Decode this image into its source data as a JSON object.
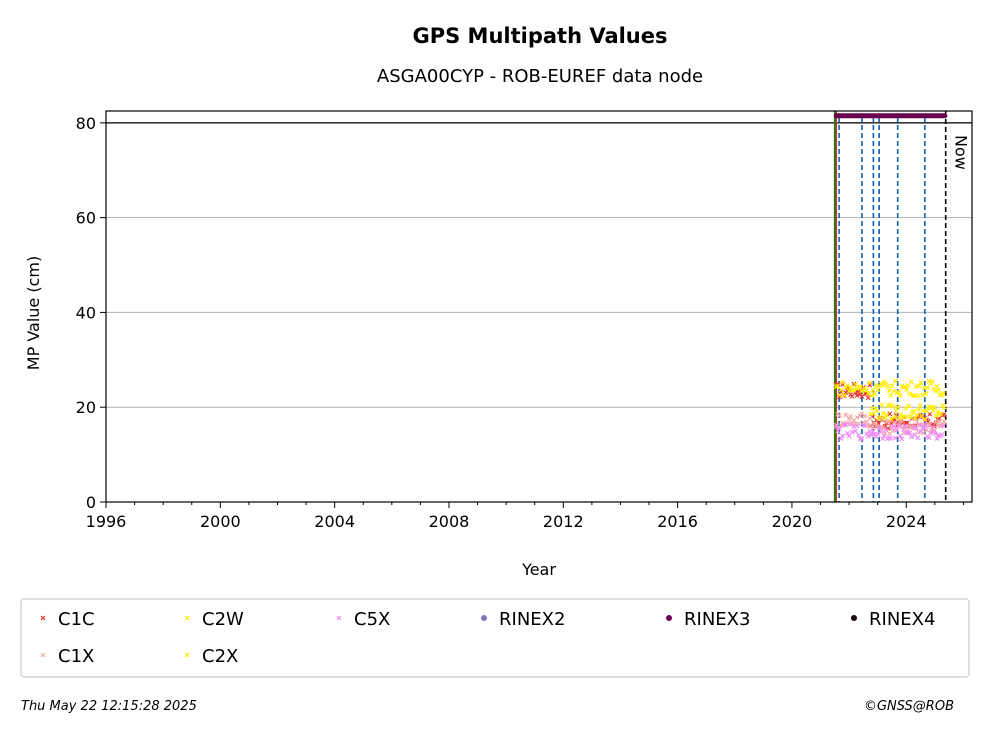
{
  "chart_data": {
    "type": "scatter",
    "title": "GPS Multipath Values",
    "subtitle": "ASGA00CYP - ROB-EUREF data node",
    "xlabel": "Year",
    "ylabel": "MP Value (cm)",
    "xlim": [
      1996,
      2026.3
    ],
    "ylim": [
      0,
      82.5
    ],
    "xticks": [
      1996,
      2000,
      2004,
      2008,
      2012,
      2016,
      2020,
      2024
    ],
    "yticks": [
      0,
      20,
      40,
      60,
      80
    ],
    "grid": "horizontal",
    "legend_position": "bottom",
    "series": [
      {
        "name": "C1C",
        "color": "#e8302a",
        "marker": "x",
        "segments": [
          {
            "x": [
              2021.55,
              2022.75
            ],
            "y": 23.5
          },
          {
            "x": [
              2022.75,
              2025.35
            ],
            "y": 17
          }
        ]
      },
      {
        "name": "C1X",
        "color": "#f5a7a7",
        "marker": "x",
        "segments": [
          {
            "x": [
              2021.55,
              2022.75
            ],
            "y": 17.5
          },
          {
            "x": [
              2022.75,
              2025.35
            ],
            "y": 16
          }
        ]
      },
      {
        "name": "C2W",
        "color": "#ffee00",
        "marker": "x",
        "segments": [
          {
            "x": [
              2022.75,
              2025.35
            ],
            "y": 19
          }
        ]
      },
      {
        "name": "C2X",
        "color": "#ffee00",
        "marker": "x",
        "segments": [
          {
            "x": [
              2021.55,
              2025.35
            ],
            "y": 24
          }
        ]
      },
      {
        "name": "C5X",
        "color": "#f08cf5",
        "marker": "x",
        "segments": [
          {
            "x": [
              2021.55,
              2025.35
            ],
            "y": 14.8
          }
        ]
      },
      {
        "name": "RINEX2",
        "color": "#8077bb",
        "marker": "o",
        "segments": []
      },
      {
        "name": "RINEX3",
        "color": "#6a0050",
        "marker": "o",
        "segments": [
          {
            "x": [
              2021.55,
              2025.35
            ],
            "y": 81.5
          }
        ]
      },
      {
        "name": "RINEX4",
        "color": "#1a0010",
        "marker": "o",
        "segments": []
      }
    ],
    "reference_lines": {
      "horizontal": [
        {
          "y": 80,
          "color": "#000000"
        }
      ],
      "start_green": 2021.5,
      "start_red": 2021.55,
      "events_blue": [
        2021.65,
        2022.45,
        2022.85,
        2023.05,
        2023.7,
        2024.65
      ],
      "now": {
        "x": 2025.38,
        "label": "Now"
      }
    },
    "legend": {
      "entries": [
        {
          "label": "C1C",
          "series": "C1C"
        },
        {
          "label": "C2W",
          "series": "C2W"
        },
        {
          "label": "C5X",
          "series": "C5X"
        },
        {
          "label": "RINEX2",
          "series": "RINEX2"
        },
        {
          "label": "RINEX3",
          "series": "RINEX3"
        },
        {
          "label": "RINEX4",
          "series": "RINEX4"
        },
        {
          "label": "C1X",
          "series": "C1X"
        },
        {
          "label": "C2X",
          "series": "C2X"
        }
      ]
    }
  },
  "footer": {
    "timestamp": "Thu May 22 12:15:28 2025",
    "copyright": "©GNSS@ROB"
  }
}
